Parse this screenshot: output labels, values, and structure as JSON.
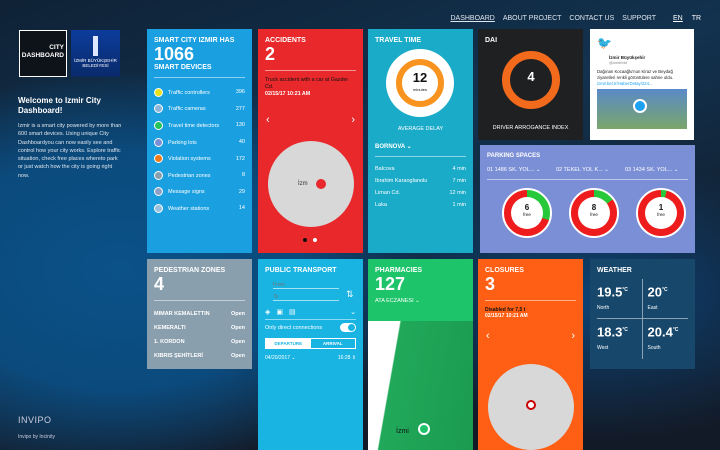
{
  "nav": {
    "items": [
      "DASHBOARD",
      "ABOUT PROJECT",
      "CONTACT US",
      "SUPPORT"
    ],
    "active": "DASHBOARD",
    "langs": [
      "EN",
      "TR"
    ]
  },
  "logo": {
    "city_dashboard": "CITY DASHBOARD",
    "municipality": "İZMİR BÜYÜKŞEHİR BELEDİYESİ"
  },
  "welcome": {
    "title": "Welcome to Izmir City Dashboard!",
    "text": "Izmir is a smart city powered by more than 600 smart devices. Using unique City Dashboardyou can now easily see and control how your city works. Explore traffic situation, check free places whereto park or just watch how the city is going right now."
  },
  "footer": {
    "brand": "INVIPO",
    "by": "Invipo by Incinity"
  },
  "devices": {
    "title": "SMART CITY IZMIR HAS",
    "count": "1066",
    "subtitle": "SMART DEVICES",
    "items": [
      {
        "label": "Traffic controllers",
        "value": "396",
        "color": "#e8e21a"
      },
      {
        "label": "Traffic cameras",
        "value": "277",
        "color": "#8fb6d8"
      },
      {
        "label": "Travel time detectors",
        "value": "130",
        "color": "#27c25a"
      },
      {
        "label": "Parking lots",
        "value": "40",
        "color": "#7b8fd6"
      },
      {
        "label": "Violation systems",
        "value": "172",
        "color": "#f07a1a"
      },
      {
        "label": "Pedestrian zones",
        "value": "8",
        "color": "#8a9fae"
      },
      {
        "label": "Message signs",
        "value": "29",
        "color": "#8fa0c8"
      },
      {
        "label": "Weather stations",
        "value": "14",
        "color": "#9ac0e0"
      }
    ]
  },
  "accidents": {
    "title": "ACCIDENTS",
    "count": "2",
    "text": "Truck accident with a car at Gazder Cd.",
    "time": "02/15/17 10:21 AM",
    "map_label": "İzm",
    "pages": 2,
    "current_page": 1
  },
  "travel": {
    "title": "TRAVEL TIME",
    "value": "12",
    "unit": "minutes",
    "caption": "AVERAGE DELAY",
    "district": "BORNOVA",
    "items": [
      {
        "label": "Balcova",
        "value": "4 min"
      },
      {
        "label": "Ibrahim Karaoglanolu",
        "value": "7 min"
      },
      {
        "label": "Liman Cd.",
        "value": "12 min"
      },
      {
        "label": "Laka",
        "value": "1 min"
      }
    ]
  },
  "dai": {
    "title": "DAI",
    "value": "4",
    "caption": "DRIVER ARROGANCE INDEX"
  },
  "twitter": {
    "account": "İzmir Büyükşehir",
    "handle": "@izmirbld",
    "text": "Dağınan Kocaağlu'nun Kiraz ve Beydağ ziyaretleri renkli görüntülere sahne oldu.",
    "link": "izmir.bel.tr/HaberDetay/224..."
  },
  "parking": {
    "title": "PARKING SPACES",
    "lots": [
      {
        "name": "01 1486 SK. YOL...",
        "free": "6",
        "free_label": "free",
        "free_fraction": 0.3
      },
      {
        "name": "02 TEKEL YOL K...",
        "free": "8",
        "free_label": "free",
        "free_fraction": 0.15
      },
      {
        "name": "03 1434 SK. YOL...",
        "free": "1",
        "free_label": "free",
        "free_fraction": 0.04
      }
    ]
  },
  "pedestrian": {
    "title": "PEDESTRIAN ZONES",
    "count": "4",
    "zones": [
      {
        "name": "MIMAR KEMALETTIN",
        "status": "Open"
      },
      {
        "name": "KEMERALTI",
        "status": "Open"
      },
      {
        "name": "1. KORDON",
        "status": "Open"
      },
      {
        "name": "KIBRIS ŞEHİTLERİ",
        "status": "Open"
      }
    ]
  },
  "transport": {
    "title": "PUBLIC TRANSPORT",
    "from_placeholder": "From",
    "to_placeholder": "To",
    "direct_label": "Only direct connections",
    "direct_on": true,
    "departure": "DEPARTURE",
    "arrival": "ARRIVAL",
    "date": "04/20/2017",
    "time": "16:28"
  },
  "pharmacies": {
    "title": "PHARMACIES",
    "count": "127",
    "selected": "ATA ECZANESI",
    "map_label": "İzmi"
  },
  "closures": {
    "title": "CLOSURES",
    "count": "3",
    "text": "Disabled for 7,5 t",
    "time": "02/15/17 10:21 AM"
  },
  "weather": {
    "title": "WEATHER",
    "unit": "°C",
    "cells": [
      {
        "temp": "19.5",
        "label": "North"
      },
      {
        "temp": "20",
        "label": "East"
      },
      {
        "temp": "18.3",
        "label": "West"
      },
      {
        "temp": "20.4",
        "label": "South"
      }
    ]
  },
  "colors": {
    "devices": "#1a9fe0",
    "accidents": "#e8282b",
    "travel": "#1aabc8",
    "dai": "#1f2022",
    "parking": "#7b8fd6",
    "pedestrian": "#8a9fae",
    "transport": "#19b4e2",
    "pharmacies": "#1ec46a",
    "closures": "#ff5f14",
    "weather": "#17476a"
  }
}
